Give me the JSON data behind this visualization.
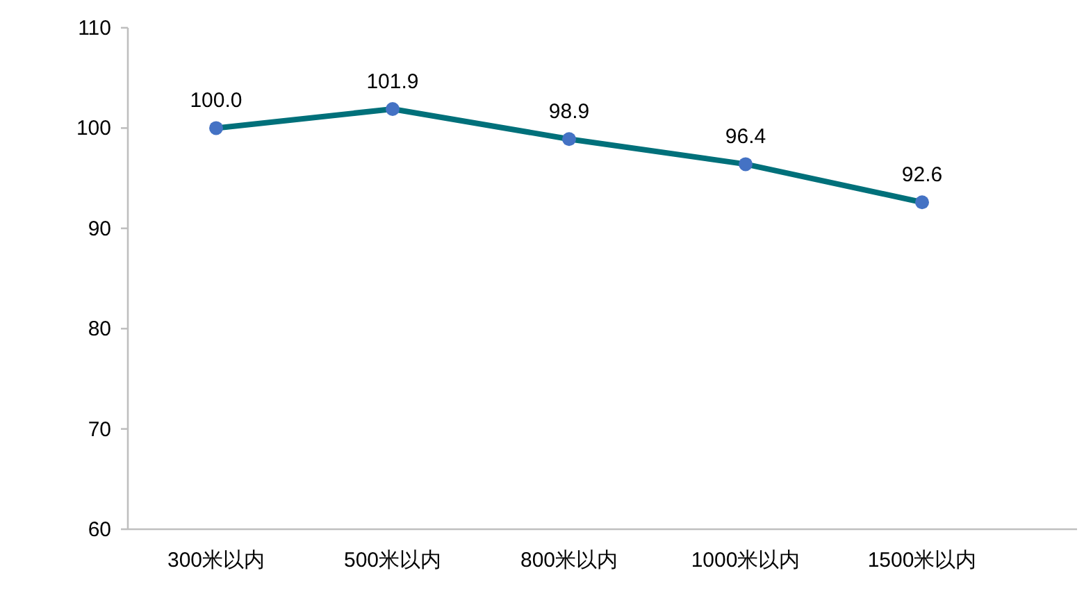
{
  "chart_data": {
    "type": "line",
    "categories": [
      "300米以内",
      "500米以内",
      "800米以内",
      "1000米以内",
      "1500米以内"
    ],
    "values": [
      100.0,
      101.9,
      98.9,
      96.4,
      92.6
    ],
    "color": "#00707a",
    "colors": [
      "#4472c4",
      "#4472c4",
      "#4472c4",
      "#4472c4",
      "#4472c4"
    ],
    "marker": "circle",
    "line_style": "solid",
    "value_labels": [
      "100.0",
      "101.9",
      "98.9",
      "96.4",
      "92.6"
    ],
    "ylim": [
      60,
      110
    ],
    "yticks": [
      60,
      70,
      80,
      90,
      100,
      110
    ],
    "grid": false
  }
}
